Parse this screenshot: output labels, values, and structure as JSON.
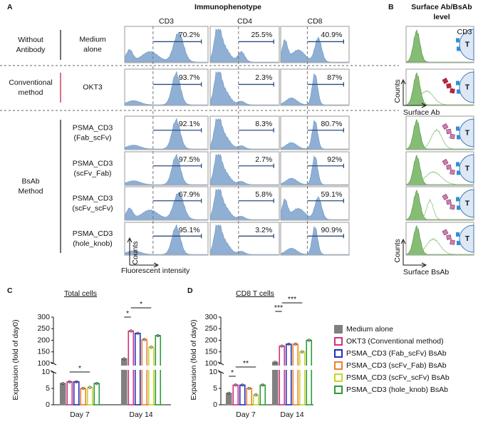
{
  "panel_a": {
    "label": "A",
    "title": "Immunophenotype",
    "columns": [
      "CD3",
      "CD4",
      "CD8"
    ],
    "groups": [
      {
        "label": [
          "Without",
          "Antibody"
        ],
        "rows": [
          {
            "label": [
              "Medium",
              "alone"
            ],
            "percents": [
              "70.2%",
              "25.5%",
              "40.9%"
            ]
          }
        ]
      },
      {
        "label": [
          "Conventional",
          "method"
        ],
        "rows": [
          {
            "label": [
              "OKT3"
            ],
            "percents": [
              "93.7%",
              "2.3%",
              "87%"
            ]
          }
        ]
      },
      {
        "label": [
          "BsAb",
          "Method"
        ],
        "rows": [
          {
            "label": [
              "PSMA_CD3",
              "(Fab_scFv)"
            ],
            "percents": [
              "92.1%",
              "8.3%",
              "80.7%"
            ]
          },
          {
            "label": [
              "PSMA_CD3",
              "(scFv_Fab)"
            ],
            "percents": [
              "97.5%",
              "2.7%",
              "92%"
            ]
          },
          {
            "label": [
              "PSMA_CD3",
              "(scFv_scFv)"
            ],
            "percents": [
              "67.9%",
              "5.8%",
              "59.1%"
            ]
          },
          {
            "label": [
              "PSMA_CD3",
              "(hole_knob)"
            ],
            "percents": [
              "95.1%",
              "3.2%",
              "90.9%"
            ]
          }
        ]
      }
    ],
    "y_axis": "Counts",
    "x_axis": "Fluorescent intensity"
  },
  "panel_b": {
    "label": "B",
    "title": [
      "Surface Ab/BsAb",
      "level"
    ],
    "marker": "CD3",
    "cell": "T",
    "ab_axis": {
      "y": "Counts",
      "x": "Surface Ab"
    },
    "bsab_axis": {
      "y": "Counts",
      "x": "Surface BsAb"
    }
  },
  "chart_data": [
    {
      "type": "bar",
      "label": "C",
      "title": "Total cells",
      "y_label": "Expansion (fold of day0)",
      "categories": [
        "Day 7",
        "Day 14"
      ],
      "y_segments": [
        {
          "ylim": [
            0,
            10
          ],
          "yticks": [
            0,
            5,
            10
          ]
        },
        {
          "ylim": [
            100,
            300
          ],
          "yticks": [
            100,
            150,
            200,
            250,
            300
          ]
        }
      ],
      "series": [
        {
          "color": "#808080",
          "values": [
            6.5,
            120
          ]
        },
        {
          "color": "#d6307a",
          "values": [
            7,
            240
          ]
        },
        {
          "color": "#1f2fbf",
          "values": [
            7,
            230
          ]
        },
        {
          "color": "#f07f2a",
          "values": [
            5,
            203
          ]
        },
        {
          "color": "#c8d42a",
          "values": [
            5.3,
            170
          ]
        },
        {
          "color": "#2e9a3a",
          "values": [
            6.5,
            220
          ]
        }
      ],
      "annotations": [
        "*",
        "*",
        "*"
      ]
    },
    {
      "type": "bar",
      "label": "D",
      "title": "CD8 T cells",
      "y_label": "Expansion (fold of day0)",
      "categories": [
        "Day 7",
        "Day 14"
      ],
      "y_segments": [
        {
          "ylim": [
            0,
            10
          ],
          "yticks": [
            0,
            5,
            10
          ]
        },
        {
          "ylim": [
            100,
            300
          ],
          "yticks": [
            100,
            150,
            200,
            250,
            300
          ]
        }
      ],
      "series": [
        {
          "name": "Medium alone",
          "color": "#808080",
          "values": [
            3.5,
            105
          ]
        },
        {
          "name": "OKT3 (Conventional method)",
          "color": "#d6307a",
          "values": [
            6,
            175
          ]
        },
        {
          "name": "PSMA_CD3 (Fab_scFv) BsAb",
          "color": "#1f2fbf",
          "values": [
            6,
            183
          ]
        },
        {
          "name": "PSMA_CD3 (scFv_Fab) BsAb",
          "color": "#f07f2a",
          "values": [
            5,
            183
          ]
        },
        {
          "name": "PSMA_CD3 (scFv_scFv) BsAb",
          "color": "#c8d42a",
          "values": [
            3,
            150
          ]
        },
        {
          "name": "PSMA_CD3 (hole_knob) BsAb",
          "color": "#2e9a3a",
          "values": [
            6,
            200
          ]
        }
      ],
      "annotations": [
        "*",
        "**",
        "***",
        "***"
      ]
    }
  ]
}
